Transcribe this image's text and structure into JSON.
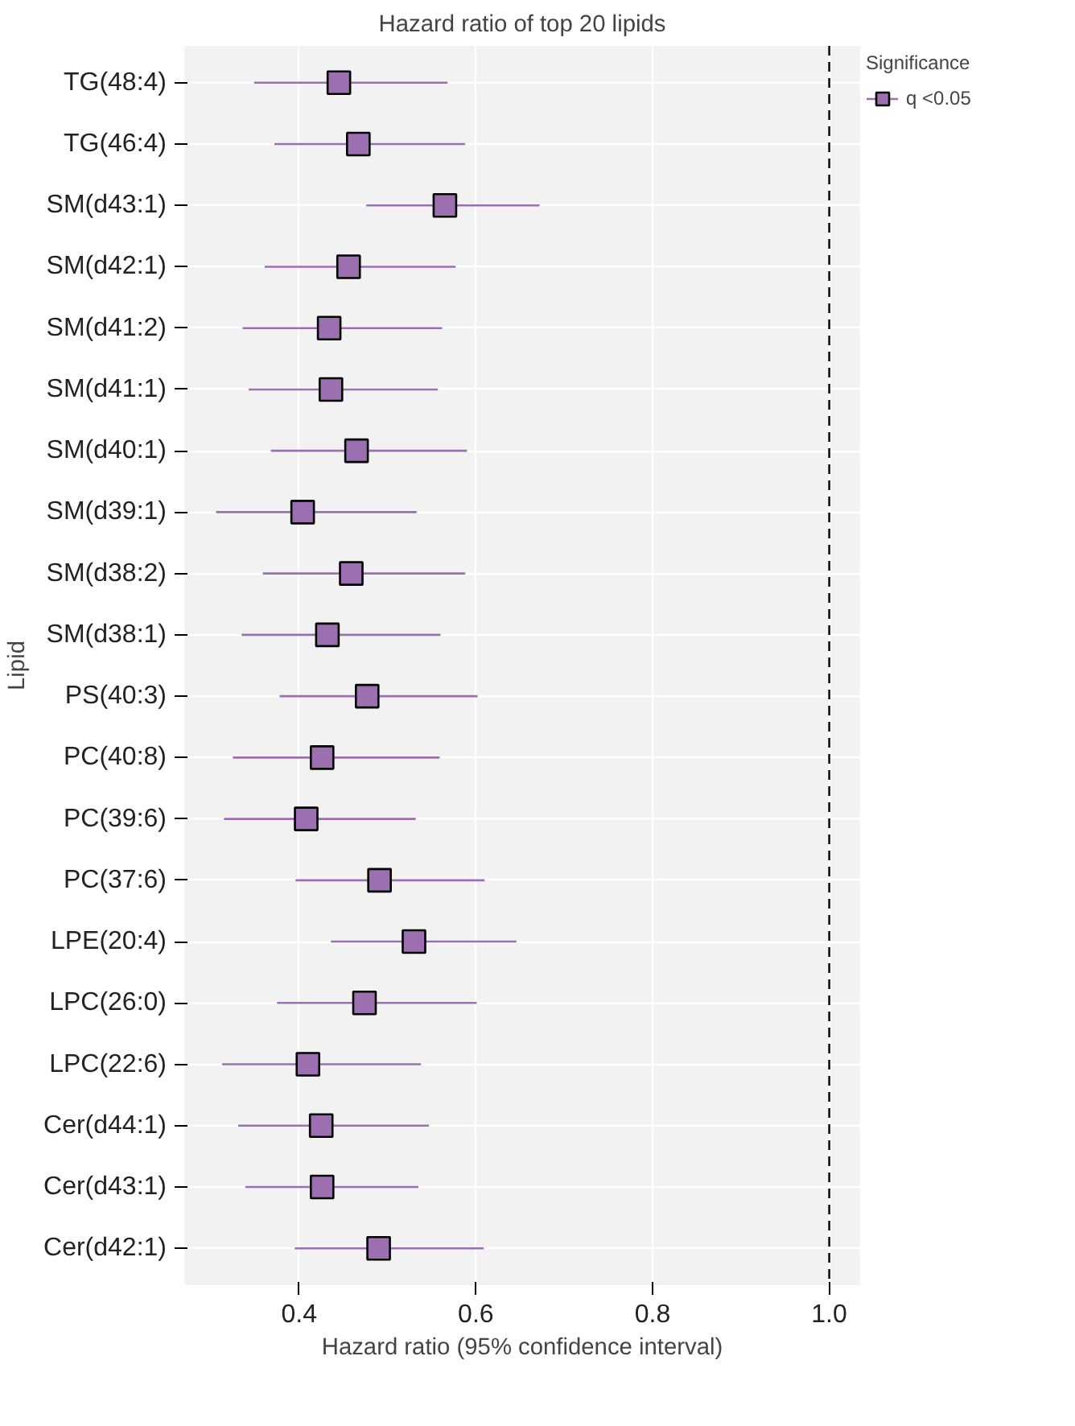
{
  "chart_data": {
    "type": "scatter",
    "orientation": "horizontal",
    "title": "Hazard ratio of top 20 lipids",
    "xlabel": "Hazard ratio (95% confidence interval)",
    "ylabel": "Lipid",
    "legend_title": "Significance",
    "categories": [
      "TG(48:4)",
      "TG(46:4)",
      "SM(d43:1)",
      "SM(d42:1)",
      "SM(d41:2)",
      "SM(d41:1)",
      "SM(d40:1)",
      "SM(d39:1)",
      "SM(d38:2)",
      "SM(d38:1)",
      "PS(40:3)",
      "PC(40:8)",
      "PC(39:6)",
      "PC(37:6)",
      "LPE(20:4)",
      "LPC(26:0)",
      "LPC(22:6)",
      "Cer(d44:1)",
      "Cer(d43:1)",
      "Cer(d42:1)"
    ],
    "series": [
      {
        "name": "q <0.05",
        "color": "#9b6fb0",
        "values": [
          0.445,
          0.467,
          0.565,
          0.456,
          0.434,
          0.436,
          0.465,
          0.404,
          0.459,
          0.432,
          0.477,
          0.426,
          0.408,
          0.491,
          0.53,
          0.474,
          0.41,
          0.425,
          0.426,
          0.49
        ],
        "errors": [
          [
            0.349,
            0.568
          ],
          [
            0.372,
            0.588
          ],
          [
            0.476,
            0.672
          ],
          [
            0.361,
            0.577
          ],
          [
            0.336,
            0.562
          ],
          [
            0.343,
            0.557
          ],
          [
            0.368,
            0.59
          ],
          [
            0.306,
            0.533
          ],
          [
            0.359,
            0.588
          ],
          [
            0.335,
            0.56
          ],
          [
            0.378,
            0.602
          ],
          [
            0.325,
            0.559
          ],
          [
            0.315,
            0.532
          ],
          [
            0.396,
            0.61
          ],
          [
            0.436,
            0.646
          ],
          [
            0.375,
            0.601
          ],
          [
            0.313,
            0.538
          ],
          [
            0.331,
            0.547
          ],
          [
            0.339,
            0.535
          ],
          [
            0.395,
            0.609
          ]
        ]
      }
    ],
    "xlim": [
      0.27,
      1.035
    ],
    "xticks": [
      0.4,
      0.6,
      0.8,
      {
        "value": 1.0,
        "label": "1.0"
      }
    ],
    "ref_lines": [
      {
        "axis": "x",
        "value": 1.0,
        "label": null,
        "color": "#000000",
        "line_style": "dashed"
      }
    ],
    "grid": true,
    "legend": "right",
    "marker": "square"
  }
}
